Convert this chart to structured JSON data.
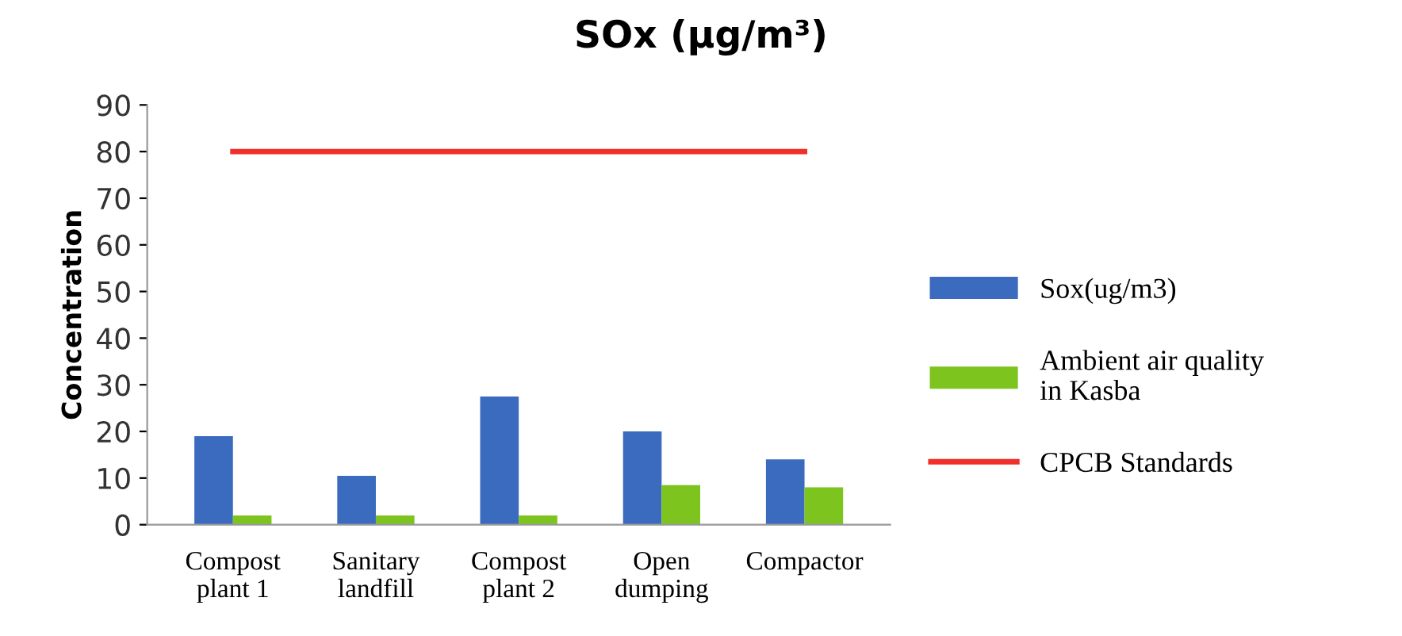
{
  "chart_data": {
    "type": "bar",
    "title": "SOx (µg/m³)",
    "ylabel": "Concentration",
    "categories": [
      "Compost\nplant 1",
      "Sanitary\nlandfill",
      "Compost\nplant 2",
      "Open\ndumping",
      "Compactor"
    ],
    "series": [
      {
        "name": "Sox(ug/m3)",
        "color": "#3a6bbf",
        "values": [
          19,
          10.5,
          27.5,
          20,
          14
        ]
      },
      {
        "name": "Ambient air quality\nin Kasba",
        "color": "#7dc41f",
        "values": [
          2,
          2,
          2,
          8.5,
          8
        ]
      },
      {
        "name": "CPCB Standards",
        "color": "#f0302a",
        "type": "line",
        "values": [
          80,
          80,
          80,
          80,
          80
        ]
      }
    ],
    "ylim": [
      0,
      90
    ],
    "yticks": [
      0,
      10,
      20,
      30,
      40,
      50,
      60,
      70,
      80,
      90
    ],
    "grid": false,
    "legend": "right",
    "marker": "none"
  }
}
